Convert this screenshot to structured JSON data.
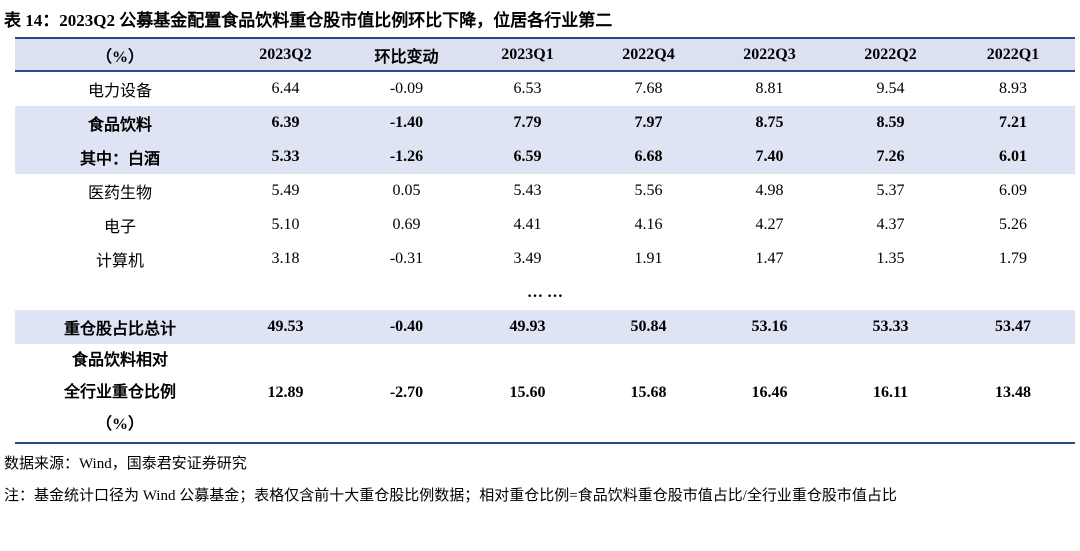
{
  "title": "表 14：2023Q2 公募基金配置食品饮料重仓股市值比例环比下降，位居各行业第二",
  "table": {
    "header": [
      "（%）",
      "2023Q2",
      "环比变动",
      "2023Q1",
      "2022Q4",
      "2022Q3",
      "2022Q2",
      "2022Q1"
    ],
    "rows_top": [
      [
        "电力设备",
        "6.44",
        "-0.09",
        "6.53",
        "7.68",
        "8.81",
        "9.54",
        "8.93"
      ],
      [
        "食品饮料",
        "6.39",
        "-1.40",
        "7.79",
        "7.97",
        "8.75",
        "8.59",
        "7.21"
      ],
      [
        "其中：白酒",
        "5.33",
        "-1.26",
        "6.59",
        "6.68",
        "7.40",
        "7.26",
        "6.01"
      ],
      [
        "医药生物",
        "5.49",
        "0.05",
        "5.43",
        "5.56",
        "4.98",
        "5.37",
        "6.09"
      ],
      [
        "电子",
        "5.10",
        "0.69",
        "4.41",
        "4.16",
        "4.27",
        "4.37",
        "5.26"
      ],
      [
        "计算机",
        "3.18",
        "-0.31",
        "3.49",
        "1.91",
        "1.47",
        "1.35",
        "1.79"
      ]
    ],
    "ellipsis": "… …",
    "rows_bottom": [
      [
        "重仓股占比总计",
        "49.53",
        "-0.40",
        "49.93",
        "50.84",
        "53.16",
        "53.33",
        "53.47"
      ],
      [
        [
          "食品饮料相对",
          "全行业重仓比例",
          "（%）"
        ],
        "12.89",
        "-2.70",
        "15.60",
        "15.68",
        "16.46",
        "16.11",
        "13.48"
      ]
    ]
  },
  "source": "数据来源：Wind，国泰君安证券研究",
  "note": "注：基金统计口径为 Wind 公募基金；表格仅含前十大重仓股比例数据；相对重仓比例=食品饮料重仓股市值占比/全行业重仓股市值占比"
}
